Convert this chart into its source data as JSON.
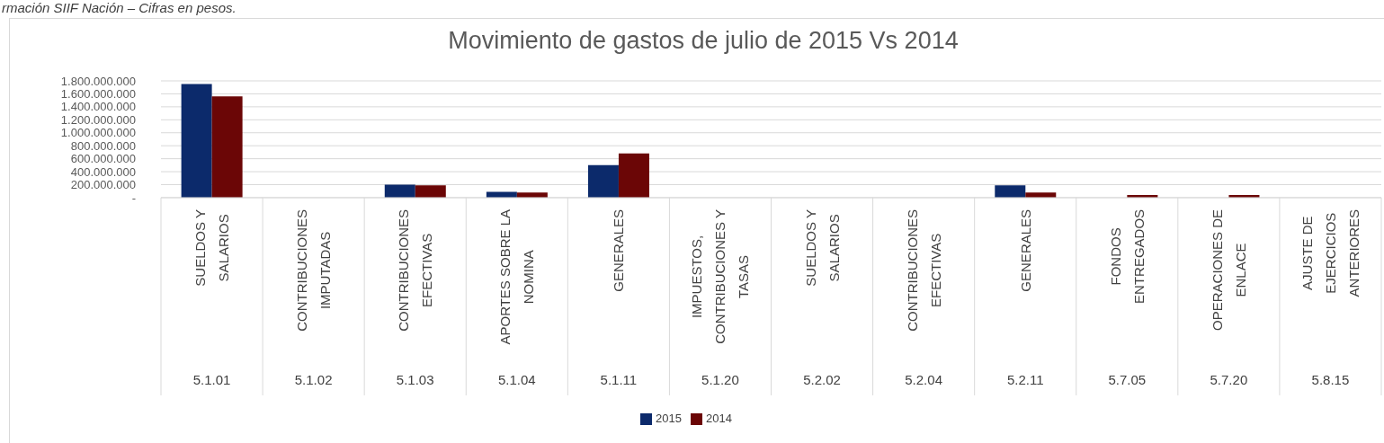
{
  "chart_data": {
    "type": "bar",
    "title": "Movimiento de gastos de julio de 2015 Vs 2014",
    "annotations": [
      "rmación SIIF Nación – Cifras en pesos.",
      "5.1.01",
      "5.1.02",
      "5.1.03",
      "5.1.04",
      "5.1.11",
      "5.1.20",
      "5.2.02",
      "5.2.04",
      "5.2.11",
      "5.7.05",
      "5.7.20",
      "5.8.15"
    ],
    "categories": [
      "SUELDOS Y SALARIOS",
      "CONTRIBUCIONES IMPUTADAS",
      "CONTRIBUCIONES EFECTIVAS",
      "APORTES SOBRE LA NOMINA",
      "GENERALES",
      "IMPUESTOS, CONTRIBUCIONES Y TASAS",
      "SUELDOS Y SALARIOS",
      "CONTRIBUCIONES EFECTIVAS",
      "GENERALES",
      "FONDOS ENTREGADOS",
      "OPERACIONES DE ENLACE",
      "AJUSTE DE EJERCICIOS ANTERIORES"
    ],
    "series": [
      {
        "name": "2015",
        "color": "#0c2a6b",
        "values": [
          1750000000,
          0,
          200000000,
          90000000,
          500000000,
          0,
          0,
          0,
          190000000,
          0,
          0,
          0
        ]
      },
      {
        "name": "2014",
        "color": "#6b0606",
        "values": [
          1560000000,
          0,
          190000000,
          80000000,
          680000000,
          0,
          0,
          0,
          80000000,
          40000000,
          40000000,
          0
        ]
      }
    ],
    "ylim": [
      0,
      1800000000
    ],
    "yticks": [
      {
        "value": 0,
        "label": "-"
      },
      {
        "value": 200000000,
        "label": "200.000.000"
      },
      {
        "value": 400000000,
        "label": "400.000.000"
      },
      {
        "value": 600000000,
        "label": "600.000.000"
      },
      {
        "value": 800000000,
        "label": "800.000.000"
      },
      {
        "value": 1000000000,
        "label": "1.000.000.000"
      },
      {
        "value": 1200000000,
        "label": "1.200.000.000"
      },
      {
        "value": 1400000000,
        "label": "1.400.000.000"
      },
      {
        "value": 1600000000,
        "label": "1.600.000.000"
      },
      {
        "value": 1800000000,
        "label": "1.800.000.000"
      }
    ],
    "grid": "y",
    "legend": "bottom"
  }
}
